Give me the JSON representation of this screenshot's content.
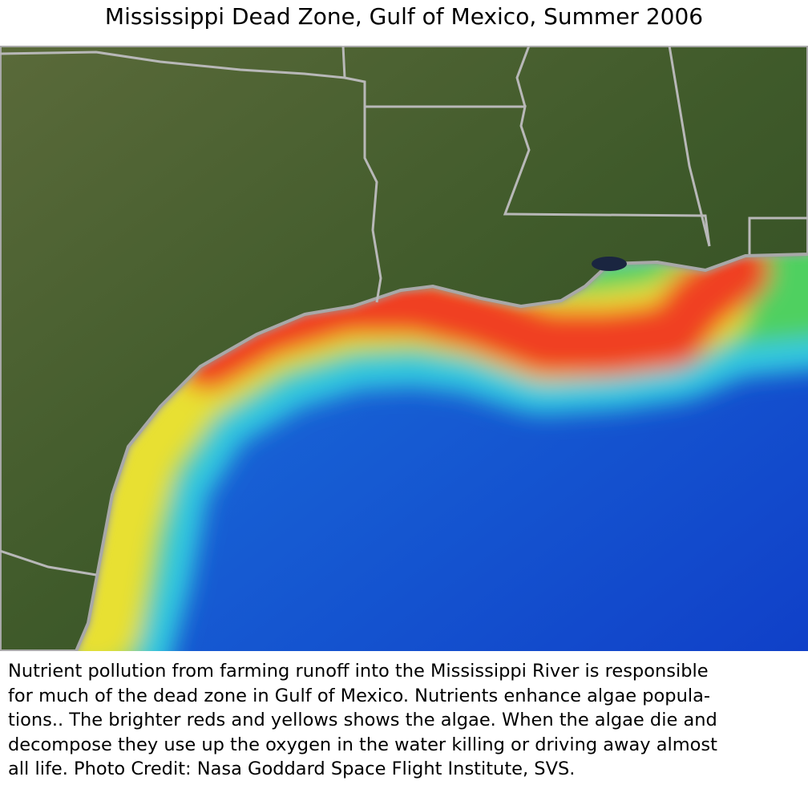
{
  "header": {
    "title": "Mississippi Dead Zone, Gulf of Mexico, Summer 2006"
  },
  "caption": {
    "lines": [
      "Nutrient pollution from farming runoff into the Mississippi River is responsible",
      "for much of the dead zone in Gulf of Mexico.  Nutrients enhance algae popula-",
      "tions.. The brighter reds and yellows shows the algae.  When the algae die and",
      "decompose they use up the oxygen in the water killing or driving away almost",
      "all life.  Photo Credit: Nasa Goddard Space Flight Institute, SVS."
    ]
  }
}
